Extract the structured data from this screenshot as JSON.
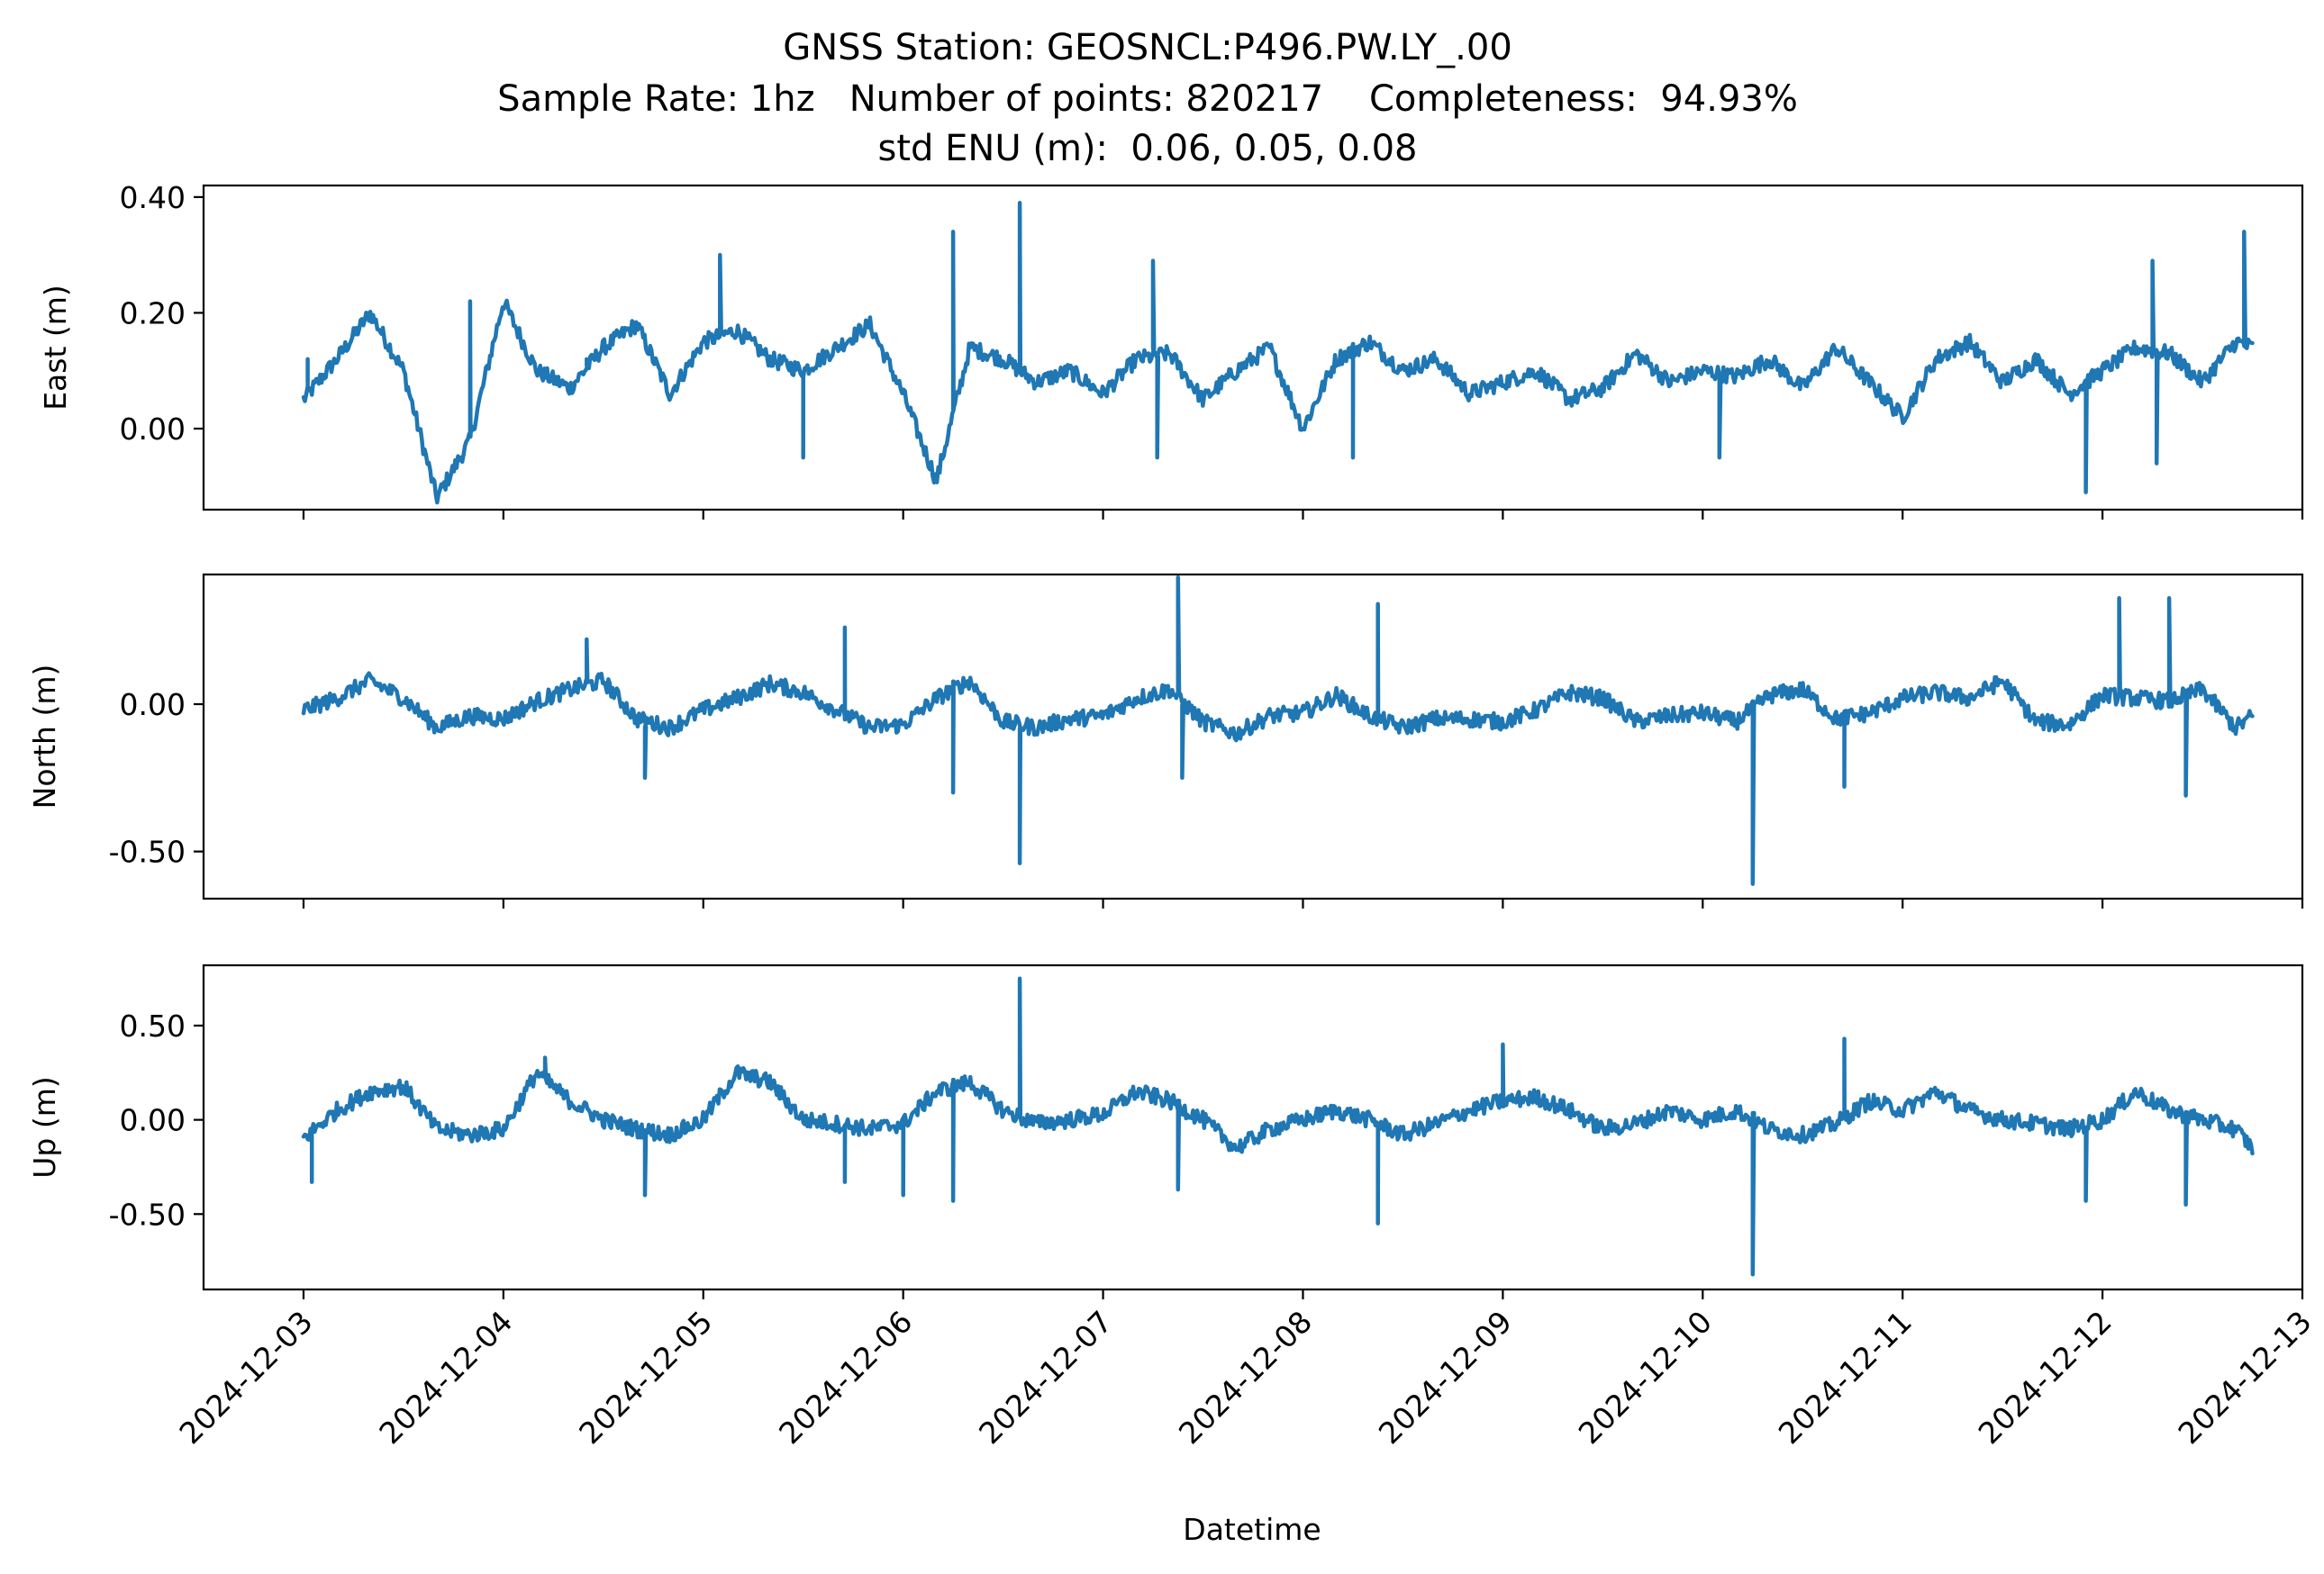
{
  "figure": {
    "title_lines": [
      "GNSS Station: GEOSNCL:P496.PW.LY_.00",
      "Sample Rate: 1hz   Number of points: 820217    Completeness:  94.93%",
      "std ENU (m):  0.06, 0.05, 0.08"
    ]
  },
  "chart_data": [
    {
      "type": "line",
      "panel": "east",
      "ylabel": "East (m)",
      "xlabel": "",
      "ylim": [
        -0.14,
        0.42
      ],
      "yticks": [
        0.0,
        0.2,
        0.4
      ],
      "ytick_labels": [
        "0.00",
        "0.20",
        "0.40"
      ],
      "x_start": "2024-12-03",
      "x_end": "2024-12-12 18:00",
      "xlim": [
        "2024-12-02 12:00",
        "2024-12-13 00:00"
      ],
      "xticks": [
        "2024-12-03",
        "2024-12-04",
        "2024-12-05",
        "2024-12-06",
        "2024-12-07",
        "2024-12-08",
        "2024-12-09",
        "2024-12-10",
        "2024-12-11",
        "2024-12-12",
        "2024-12-13"
      ],
      "xtick_labels_shown": false,
      "color": "#1f77b4",
      "grid": false,
      "x": [
        "2024-12-03 00:00",
        "2024-12-03 04:00",
        "2024-12-03 08:00",
        "2024-12-03 12:00",
        "2024-12-03 16:00",
        "2024-12-03 20:00",
        "2024-12-04 00:00",
        "2024-12-04 04:00",
        "2024-12-04 08:00",
        "2024-12-04 12:00",
        "2024-12-04 16:00",
        "2024-12-04 20:00",
        "2024-12-05 00:00",
        "2024-12-05 04:00",
        "2024-12-05 08:00",
        "2024-12-05 12:00",
        "2024-12-05 16:00",
        "2024-12-05 20:00",
        "2024-12-06 00:00",
        "2024-12-06 04:00",
        "2024-12-06 08:00",
        "2024-12-06 12:00",
        "2024-12-06 16:00",
        "2024-12-06 20:00",
        "2024-12-07 00:00",
        "2024-12-07 04:00",
        "2024-12-07 08:00",
        "2024-12-07 12:00",
        "2024-12-07 16:00",
        "2024-12-07 20:00",
        "2024-12-08 00:00",
        "2024-12-08 04:00",
        "2024-12-08 08:00",
        "2024-12-08 12:00",
        "2024-12-08 16:00",
        "2024-12-08 20:00",
        "2024-12-09 00:00",
        "2024-12-09 04:00",
        "2024-12-09 08:00",
        "2024-12-09 12:00",
        "2024-12-09 16:00",
        "2024-12-09 20:00",
        "2024-12-10 00:00",
        "2024-12-10 04:00",
        "2024-12-10 08:00",
        "2024-12-10 12:00",
        "2024-12-10 16:00",
        "2024-12-10 20:00",
        "2024-12-11 00:00",
        "2024-12-11 04:00",
        "2024-12-11 08:00",
        "2024-12-11 12:00",
        "2024-12-11 16:00",
        "2024-12-11 20:00",
        "2024-12-12 00:00",
        "2024-12-12 04:00",
        "2024-12-12 08:00",
        "2024-12-12 12:00",
        "2024-12-12 16:00",
        "2024-12-12 18:00"
      ],
      "y": [
        0.05,
        0.12,
        0.2,
        0.1,
        -0.12,
        -0.02,
        0.22,
        0.1,
        0.07,
        0.14,
        0.18,
        0.06,
        0.15,
        0.17,
        0.12,
        0.1,
        0.14,
        0.18,
        0.06,
        -0.09,
        0.14,
        0.12,
        0.08,
        0.1,
        0.06,
        0.12,
        0.13,
        0.05,
        0.1,
        0.14,
        0.0,
        0.12,
        0.15,
        0.1,
        0.12,
        0.06,
        0.08,
        0.1,
        0.05,
        0.07,
        0.13,
        0.08,
        0.1,
        0.09,
        0.12,
        0.07,
        0.14,
        0.08,
        0.02,
        0.12,
        0.15,
        0.08,
        0.12,
        0.06,
        0.1,
        0.14,
        0.13,
        0.08,
        0.15,
        0.14
      ],
      "spikes": [
        {
          "x": "2024-12-03 00:30",
          "y": 0.12
        },
        {
          "x": "2024-12-03 20:00",
          "y": 0.22
        },
        {
          "x": "2024-12-04 10:00",
          "y": 0.12
        },
        {
          "x": "2024-12-05 02:00",
          "y": 0.3
        },
        {
          "x": "2024-12-05 12:00",
          "y": -0.05
        },
        {
          "x": "2024-12-06 06:00",
          "y": 0.34
        },
        {
          "x": "2024-12-06 14:00",
          "y": 0.39
        },
        {
          "x": "2024-12-07 06:00",
          "y": 0.29
        },
        {
          "x": "2024-12-07 06:30",
          "y": -0.05
        },
        {
          "x": "2024-12-08 06:00",
          "y": -0.05
        },
        {
          "x": "2024-12-10 02:00",
          "y": -0.05
        },
        {
          "x": "2024-12-11 22:00",
          "y": -0.11
        },
        {
          "x": "2024-12-12 06:00",
          "y": 0.29
        },
        {
          "x": "2024-12-12 06:30",
          "y": -0.06
        },
        {
          "x": "2024-12-12 17:00",
          "y": 0.34
        }
      ]
    },
    {
      "type": "line",
      "panel": "north",
      "ylabel": "North (m)",
      "xlabel": "",
      "ylim": [
        -0.66,
        0.44
      ],
      "yticks": [
        0.0,
        -0.5
      ],
      "ytick_labels": [
        "0.00",
        "-0.50"
      ],
      "x_start": "2024-12-03",
      "x_end": "2024-12-12 18:00",
      "xlim": [
        "2024-12-02 12:00",
        "2024-12-13 00:00"
      ],
      "xticks": [
        "2024-12-03",
        "2024-12-04",
        "2024-12-05",
        "2024-12-06",
        "2024-12-07",
        "2024-12-08",
        "2024-12-09",
        "2024-12-10",
        "2024-12-11",
        "2024-12-12",
        "2024-12-13"
      ],
      "xtick_labels_shown": false,
      "color": "#1f77b4",
      "grid": false,
      "x": [
        "2024-12-03 00:00",
        "2024-12-03 04:00",
        "2024-12-03 08:00",
        "2024-12-03 12:00",
        "2024-12-03 16:00",
        "2024-12-03 20:00",
        "2024-12-04 00:00",
        "2024-12-04 04:00",
        "2024-12-04 08:00",
        "2024-12-04 12:00",
        "2024-12-04 16:00",
        "2024-12-04 20:00",
        "2024-12-05 00:00",
        "2024-12-05 04:00",
        "2024-12-05 08:00",
        "2024-12-05 12:00",
        "2024-12-05 16:00",
        "2024-12-05 20:00",
        "2024-12-06 00:00",
        "2024-12-06 04:00",
        "2024-12-06 08:00",
        "2024-12-06 12:00",
        "2024-12-06 16:00",
        "2024-12-06 20:00",
        "2024-12-07 00:00",
        "2024-12-07 04:00",
        "2024-12-07 08:00",
        "2024-12-07 12:00",
        "2024-12-07 16:00",
        "2024-12-07 20:00",
        "2024-12-08 00:00",
        "2024-12-08 04:00",
        "2024-12-08 08:00",
        "2024-12-08 12:00",
        "2024-12-08 16:00",
        "2024-12-08 20:00",
        "2024-12-09 00:00",
        "2024-12-09 04:00",
        "2024-12-09 08:00",
        "2024-12-09 12:00",
        "2024-12-09 16:00",
        "2024-12-09 20:00",
        "2024-12-10 00:00",
        "2024-12-10 04:00",
        "2024-12-10 08:00",
        "2024-12-10 12:00",
        "2024-12-10 16:00",
        "2024-12-10 20:00",
        "2024-12-11 00:00",
        "2024-12-11 04:00",
        "2024-12-11 08:00",
        "2024-12-11 12:00",
        "2024-12-11 16:00",
        "2024-12-11 20:00",
        "2024-12-12 00:00",
        "2024-12-12 04:00",
        "2024-12-12 08:00",
        "2024-12-12 12:00",
        "2024-12-12 16:00",
        "2024-12-12 18:00"
      ],
      "y": [
        -0.02,
        0.02,
        0.08,
        0.02,
        -0.08,
        -0.04,
        -0.05,
        0.01,
        0.05,
        0.08,
        -0.05,
        -0.08,
        -0.02,
        0.02,
        0.07,
        0.04,
        -0.02,
        -0.08,
        -0.07,
        0.02,
        0.08,
        -0.06,
        -0.08,
        -0.05,
        -0.04,
        0.02,
        0.05,
        -0.06,
        -0.1,
        -0.04,
        -0.03,
        0.03,
        -0.04,
        -0.08,
        -0.05,
        -0.05,
        -0.06,
        -0.02,
        0.04,
        0.02,
        -0.06,
        -0.04,
        -0.03,
        -0.06,
        0.03,
        0.05,
        -0.05,
        -0.03,
        0.02,
        0.04,
        0.02,
        0.08,
        -0.06,
        -0.07,
        0.03,
        0.02,
        0.01,
        0.05,
        -0.08,
        -0.04
      ],
      "spikes": [
        {
          "x": "2024-12-04 10:00",
          "y": 0.22
        },
        {
          "x": "2024-12-04 17:00",
          "y": -0.25
        },
        {
          "x": "2024-12-05 17:00",
          "y": 0.26
        },
        {
          "x": "2024-12-06 06:00",
          "y": -0.3
        },
        {
          "x": "2024-12-06 14:00",
          "y": -0.54
        },
        {
          "x": "2024-12-07 09:00",
          "y": 0.43
        },
        {
          "x": "2024-12-07 09:30",
          "y": -0.25
        },
        {
          "x": "2024-12-08 09:00",
          "y": 0.34
        },
        {
          "x": "2024-12-10 06:00",
          "y": -0.61
        },
        {
          "x": "2024-12-10 17:00",
          "y": -0.28
        },
        {
          "x": "2024-12-12 02:00",
          "y": 0.36
        },
        {
          "x": "2024-12-12 08:00",
          "y": 0.36
        },
        {
          "x": "2024-12-12 10:00",
          "y": -0.31
        }
      ]
    },
    {
      "type": "line",
      "panel": "up",
      "ylabel": "Up (m)",
      "xlabel": "Datetime",
      "ylim": [
        -0.9,
        0.82
      ],
      "yticks": [
        0.5,
        0.0,
        -0.5
      ],
      "ytick_labels": [
        "0.50",
        "0.00",
        "-0.50"
      ],
      "x_start": "2024-12-03",
      "x_end": "2024-12-12 18:00",
      "xlim": [
        "2024-12-02 12:00",
        "2024-12-13 00:00"
      ],
      "xticks": [
        "2024-12-03",
        "2024-12-04",
        "2024-12-05",
        "2024-12-06",
        "2024-12-07",
        "2024-12-08",
        "2024-12-09",
        "2024-12-10",
        "2024-12-11",
        "2024-12-12",
        "2024-12-13"
      ],
      "xtick_labels": [
        "2024-12-03",
        "2024-12-04",
        "2024-12-05",
        "2024-12-06",
        "2024-12-07",
        "2024-12-08",
        "2024-12-09",
        "2024-12-10",
        "2024-12-11",
        "2024-12-12",
        "2024-12-13"
      ],
      "xtick_labels_shown": true,
      "color": "#1f77b4",
      "grid": false,
      "x": [
        "2024-12-03 00:00",
        "2024-12-03 04:00",
        "2024-12-03 08:00",
        "2024-12-03 12:00",
        "2024-12-03 16:00",
        "2024-12-03 20:00",
        "2024-12-04 00:00",
        "2024-12-04 04:00",
        "2024-12-04 08:00",
        "2024-12-04 12:00",
        "2024-12-04 16:00",
        "2024-12-04 20:00",
        "2024-12-05 00:00",
        "2024-12-05 04:00",
        "2024-12-05 08:00",
        "2024-12-05 12:00",
        "2024-12-05 16:00",
        "2024-12-05 20:00",
        "2024-12-06 00:00",
        "2024-12-06 04:00",
        "2024-12-06 08:00",
        "2024-12-06 12:00",
        "2024-12-06 16:00",
        "2024-12-06 20:00",
        "2024-12-07 00:00",
        "2024-12-07 04:00",
        "2024-12-07 08:00",
        "2024-12-07 12:00",
        "2024-12-07 16:00",
        "2024-12-07 20:00",
        "2024-12-08 00:00",
        "2024-12-08 04:00",
        "2024-12-08 08:00",
        "2024-12-08 12:00",
        "2024-12-08 16:00",
        "2024-12-08 20:00",
        "2024-12-09 00:00",
        "2024-12-09 04:00",
        "2024-12-09 08:00",
        "2024-12-09 12:00",
        "2024-12-09 16:00",
        "2024-12-09 20:00",
        "2024-12-10 00:00",
        "2024-12-10 04:00",
        "2024-12-10 08:00",
        "2024-12-10 12:00",
        "2024-12-10 16:00",
        "2024-12-10 20:00",
        "2024-12-11 00:00",
        "2024-12-11 04:00",
        "2024-12-11 08:00",
        "2024-12-11 12:00",
        "2024-12-11 16:00",
        "2024-12-11 20:00",
        "2024-12-12 00:00",
        "2024-12-12 04:00",
        "2024-12-12 08:00",
        "2024-12-12 12:00",
        "2024-12-12 16:00",
        "2024-12-12 18:00"
      ],
      "y": [
        -0.1,
        0.05,
        0.15,
        0.18,
        -0.05,
        -0.08,
        -0.05,
        0.25,
        0.1,
        0.0,
        -0.05,
        -0.08,
        0.0,
        0.25,
        0.2,
        0.0,
        -0.02,
        -0.05,
        -0.02,
        0.15,
        0.2,
        0.05,
        -0.02,
        0.0,
        0.03,
        0.15,
        0.1,
        0.0,
        -0.15,
        -0.05,
        0.0,
        0.05,
        0.0,
        -0.08,
        -0.02,
        0.05,
        0.1,
        0.12,
        0.05,
        -0.05,
        -0.02,
        0.05,
        0.0,
        0.05,
        -0.05,
        -0.08,
        -0.02,
        0.1,
        0.05,
        0.15,
        0.05,
        0.0,
        -0.02,
        -0.05,
        0.0,
        0.15,
        0.05,
        0.0,
        -0.05,
        -0.15
      ],
      "spikes": [
        {
          "x": "2024-12-03 01:00",
          "y": -0.33
        },
        {
          "x": "2024-12-04 05:00",
          "y": 0.33
        },
        {
          "x": "2024-12-04 17:00",
          "y": -0.4
        },
        {
          "x": "2024-12-05 17:00",
          "y": -0.33
        },
        {
          "x": "2024-12-06 00:00",
          "y": -0.4
        },
        {
          "x": "2024-12-06 06:00",
          "y": -0.43
        },
        {
          "x": "2024-12-06 14:00",
          "y": 0.75
        },
        {
          "x": "2024-12-07 09:00",
          "y": -0.37
        },
        {
          "x": "2024-12-08 09:00",
          "y": -0.55
        },
        {
          "x": "2024-12-09 00:00",
          "y": 0.4
        },
        {
          "x": "2024-12-10 06:00",
          "y": -0.82
        },
        {
          "x": "2024-12-10 17:00",
          "y": 0.43
        },
        {
          "x": "2024-12-11 22:00",
          "y": -0.43
        },
        {
          "x": "2024-12-12 10:00",
          "y": -0.45
        }
      ]
    }
  ]
}
